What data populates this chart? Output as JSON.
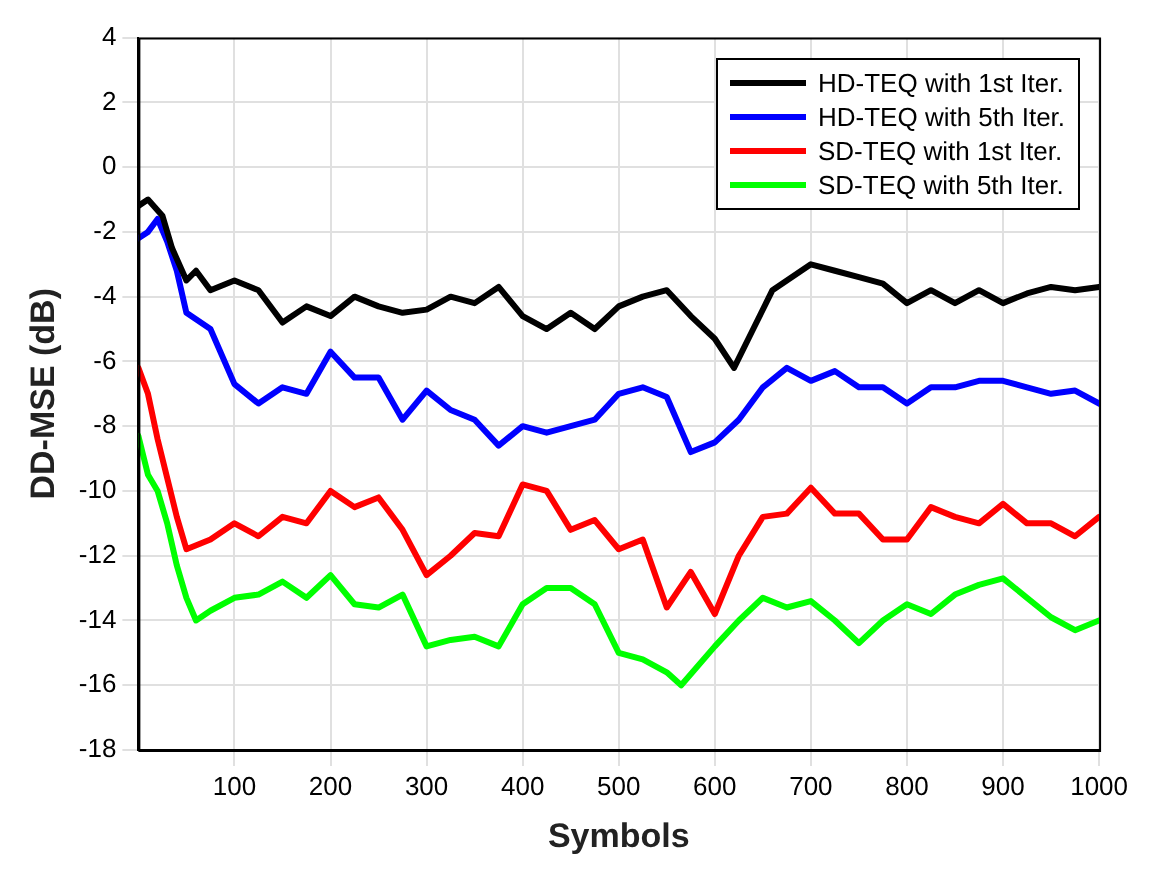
{
  "chart_data": {
    "type": "line",
    "xlabel": "Symbols",
    "ylabel": "DD-MSE (dB)",
    "xlim": [
      0,
      1000
    ],
    "xticks": [
      100,
      200,
      300,
      400,
      500,
      600,
      700,
      800,
      900,
      1000
    ],
    "ylim": [
      -18,
      4
    ],
    "yticks": [
      -18,
      -16,
      -14,
      -12,
      -10,
      -8,
      -6,
      -4,
      -2,
      0,
      2,
      4
    ],
    "grid": true,
    "legend": "top right",
    "marker": "none",
    "line_style": "solid",
    "series": [
      {
        "name": "HD-TEQ with 1st Iter.",
        "color": "#000000",
        "x": [
          0,
          10,
          25,
          35,
          50,
          60,
          75,
          100,
          125,
          150,
          175,
          200,
          225,
          250,
          275,
          300,
          325,
          350,
          375,
          400,
          425,
          450,
          475,
          500,
          525,
          550,
          575,
          600,
          620,
          640,
          660,
          700,
          725,
          750,
          775,
          800,
          825,
          850,
          875,
          900,
          925,
          950,
          975,
          1000
        ],
        "values": [
          -1.2,
          -1.0,
          -1.5,
          -2.5,
          -3.5,
          -3.2,
          -3.8,
          -3.5,
          -3.8,
          -4.8,
          -4.3,
          -4.6,
          -4.0,
          -4.3,
          -4.5,
          -4.4,
          -4.0,
          -4.2,
          -3.7,
          -4.6,
          -5.0,
          -4.5,
          -5.0,
          -4.3,
          -4.0,
          -3.8,
          -4.6,
          -5.3,
          -6.2,
          -5.0,
          -3.8,
          -3.0,
          -3.2,
          -3.4,
          -3.6,
          -4.2,
          -3.8,
          -4.2,
          -3.8,
          -4.2,
          -3.9,
          -3.7,
          -3.8,
          -3.7
        ]
      },
      {
        "name": "HD-TEQ with 5th Iter.",
        "color": "#0000ff",
        "x": [
          0,
          10,
          20,
          30,
          40,
          50,
          75,
          100,
          125,
          150,
          175,
          200,
          225,
          250,
          275,
          300,
          325,
          350,
          375,
          400,
          425,
          450,
          475,
          500,
          525,
          550,
          575,
          600,
          625,
          650,
          675,
          700,
          725,
          750,
          775,
          800,
          825,
          850,
          875,
          900,
          925,
          950,
          975,
          1000
        ],
        "values": [
          -2.2,
          -2.0,
          -1.6,
          -2.3,
          -3.2,
          -4.5,
          -5.0,
          -6.7,
          -7.3,
          -6.8,
          -7.0,
          -5.7,
          -6.5,
          -6.5,
          -7.8,
          -6.9,
          -7.5,
          -7.8,
          -8.6,
          -8.0,
          -8.2,
          -8.0,
          -7.8,
          -7.0,
          -6.8,
          -7.1,
          -8.8,
          -8.5,
          -7.8,
          -6.8,
          -6.2,
          -6.6,
          -6.3,
          -6.8,
          -6.8,
          -7.3,
          -6.8,
          -6.8,
          -6.6,
          -6.6,
          -6.8,
          -7.0,
          -6.9,
          -7.3
        ]
      },
      {
        "name": "SD-TEQ with 1st Iter.",
        "color": "#ff0000",
        "x": [
          0,
          10,
          20,
          30,
          40,
          50,
          75,
          100,
          125,
          150,
          175,
          200,
          225,
          250,
          275,
          300,
          325,
          350,
          375,
          400,
          425,
          450,
          475,
          500,
          525,
          550,
          575,
          600,
          625,
          650,
          675,
          700,
          725,
          750,
          775,
          800,
          825,
          850,
          875,
          900,
          925,
          950,
          975,
          1000
        ],
        "values": [
          -6.2,
          -7.0,
          -8.4,
          -9.6,
          -10.8,
          -11.8,
          -11.5,
          -11.0,
          -11.4,
          -10.8,
          -11.0,
          -10.0,
          -10.5,
          -10.2,
          -11.2,
          -12.6,
          -12.0,
          -11.3,
          -11.4,
          -9.8,
          -10.0,
          -11.2,
          -10.9,
          -11.8,
          -11.5,
          -13.6,
          -12.5,
          -13.8,
          -12.0,
          -10.8,
          -10.7,
          -9.9,
          -10.7,
          -10.7,
          -11.5,
          -11.5,
          -10.5,
          -10.8,
          -11.0,
          -10.4,
          -11.0,
          -11.0,
          -11.4,
          -10.8
        ]
      },
      {
        "name": "SD-TEQ with 5th Iter.",
        "color": "#00ff00",
        "x": [
          0,
          10,
          20,
          30,
          40,
          50,
          60,
          75,
          100,
          125,
          150,
          175,
          200,
          225,
          250,
          275,
          300,
          325,
          350,
          375,
          400,
          425,
          450,
          475,
          500,
          525,
          550,
          565,
          600,
          625,
          650,
          675,
          700,
          725,
          750,
          775,
          800,
          825,
          850,
          875,
          900,
          925,
          950,
          975,
          1000
        ],
        "values": [
          -8.3,
          -9.5,
          -10.0,
          -11.0,
          -12.3,
          -13.3,
          -14.0,
          -13.7,
          -13.3,
          -13.2,
          -12.8,
          -13.3,
          -12.6,
          -13.5,
          -13.6,
          -13.2,
          -14.8,
          -14.6,
          -14.5,
          -14.8,
          -13.5,
          -13.0,
          -13.0,
          -13.5,
          -15.0,
          -15.2,
          -15.6,
          -16.0,
          -14.8,
          -14.0,
          -13.3,
          -13.6,
          -13.4,
          -14.0,
          -14.7,
          -14.0,
          -13.5,
          -13.8,
          -13.2,
          -12.9,
          -12.7,
          -13.3,
          -13.9,
          -14.3,
          -14.0
        ]
      }
    ]
  }
}
